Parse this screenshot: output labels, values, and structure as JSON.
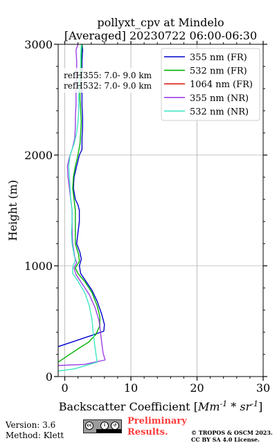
{
  "chart_data": {
    "type": "line",
    "title": "pollyxt_cpv at Mindelo",
    "subtitle": "[Averaged] 20230722 06:00-06:30",
    "xlabel": "Backscatter Coefficient [Mm^-1 * sr^-1]",
    "ylabel": "Height (m)",
    "xlim": [
      -1,
      30
    ],
    "ylim": [
      0,
      3000
    ],
    "xticks": [
      0,
      10,
      20,
      30
    ],
    "yticks": [
      0,
      1000,
      2000,
      3000
    ],
    "grid": true,
    "legend_position": "top-right",
    "reference_heights": [
      "refH355:  7.0- 9.0 km",
      "refH532:  7.0- 9.0 km"
    ],
    "series": [
      {
        "name": "355 nm (FR)",
        "color": "#0000cc",
        "points": [
          [
            -1.0,
            270
          ],
          [
            1.5,
            320
          ],
          [
            4.0,
            370
          ],
          [
            5.9,
            410
          ],
          [
            6.0,
            470
          ],
          [
            5.6,
            560
          ],
          [
            4.9,
            680
          ],
          [
            4.1,
            780
          ],
          [
            3.2,
            860
          ],
          [
            2.4,
            930
          ],
          [
            2.2,
            1000
          ],
          [
            2.5,
            1060
          ],
          [
            2.3,
            1120
          ],
          [
            1.8,
            1200
          ],
          [
            2.0,
            1300
          ],
          [
            2.2,
            1400
          ],
          [
            2.2,
            1500
          ],
          [
            2.0,
            1550
          ],
          [
            1.6,
            1600
          ],
          [
            1.3,
            1700
          ],
          [
            1.4,
            1800
          ],
          [
            1.8,
            1900
          ],
          [
            2.2,
            2000
          ],
          [
            2.6,
            2050
          ],
          [
            2.6,
            2150
          ],
          [
            2.7,
            2250
          ],
          [
            2.7,
            2350
          ],
          [
            2.6,
            2450
          ],
          [
            2.6,
            2550
          ],
          [
            2.5,
            2650
          ],
          [
            2.6,
            2750
          ],
          [
            2.6,
            2850
          ],
          [
            2.7,
            2950
          ],
          [
            2.6,
            3000
          ]
        ]
      },
      {
        "name": "532 nm (FR)",
        "color": "#00b200",
        "points": [
          [
            -1.0,
            130
          ],
          [
            0.5,
            190
          ],
          [
            2.0,
            250
          ],
          [
            3.6,
            310
          ],
          [
            4.7,
            380
          ],
          [
            5.3,
            460
          ],
          [
            5.3,
            540
          ],
          [
            4.9,
            640
          ],
          [
            4.1,
            760
          ],
          [
            3.0,
            860
          ],
          [
            2.0,
            930
          ],
          [
            1.6,
            980
          ],
          [
            2.2,
            1040
          ],
          [
            2.1,
            1100
          ],
          [
            1.6,
            1200
          ],
          [
            1.6,
            1300
          ],
          [
            1.6,
            1400
          ],
          [
            1.6,
            1500
          ],
          [
            1.4,
            1600
          ],
          [
            1.2,
            1700
          ],
          [
            1.3,
            1800
          ],
          [
            1.6,
            1900
          ],
          [
            2.0,
            2000
          ],
          [
            2.3,
            2100
          ],
          [
            2.4,
            2200
          ],
          [
            2.5,
            2300
          ],
          [
            2.4,
            2400
          ],
          [
            2.3,
            2500
          ],
          [
            2.3,
            2600
          ],
          [
            2.4,
            2700
          ],
          [
            2.5,
            2800
          ],
          [
            2.5,
            2900
          ],
          [
            2.6,
            3000
          ]
        ]
      },
      {
        "name": "1064 nm (FR)",
        "color": "#e0201b",
        "points": []
      },
      {
        "name": "355 nm (NR)",
        "color": "#9a40e6",
        "points": [
          [
            -1.0,
            100
          ],
          [
            3.0,
            110
          ],
          [
            6.1,
            150
          ],
          [
            5.8,
            210
          ],
          [
            5.6,
            300
          ],
          [
            5.4,
            400
          ],
          [
            5.2,
            500
          ],
          [
            4.6,
            620
          ],
          [
            3.7,
            740
          ],
          [
            2.6,
            840
          ],
          [
            1.7,
            920
          ],
          [
            1.4,
            980
          ],
          [
            1.8,
            1030
          ],
          [
            1.5,
            1080
          ],
          [
            1.2,
            1200
          ],
          [
            1.1,
            1300
          ],
          [
            1.1,
            1400
          ],
          [
            1.1,
            1500
          ],
          [
            0.9,
            1600
          ],
          [
            0.7,
            1700
          ],
          [
            0.5,
            1800
          ],
          [
            0.4,
            1900
          ],
          [
            0.7,
            1980
          ],
          [
            1.1,
            2050
          ],
          [
            1.5,
            2150
          ],
          [
            1.6,
            2250
          ],
          [
            1.6,
            2350
          ],
          [
            1.7,
            2450
          ],
          [
            1.7,
            2550
          ],
          [
            1.7,
            2650
          ],
          [
            1.8,
            2750
          ],
          [
            1.8,
            2850
          ],
          [
            1.7,
            2950
          ],
          [
            2.0,
            3000
          ]
        ]
      },
      {
        "name": "532 nm (NR)",
        "color": "#40e6c4",
        "points": [
          [
            -1.0,
            50
          ],
          [
            1.5,
            70
          ],
          [
            4.9,
            130
          ],
          [
            4.6,
            250
          ],
          [
            4.3,
            400
          ],
          [
            4.1,
            520
          ],
          [
            3.7,
            640
          ],
          [
            3.0,
            760
          ],
          [
            2.0,
            860
          ],
          [
            1.2,
            930
          ],
          [
            1.2,
            990
          ],
          [
            1.6,
            1050
          ],
          [
            1.4,
            1100
          ],
          [
            1.1,
            1200
          ],
          [
            1.0,
            1300
          ],
          [
            1.1,
            1400
          ],
          [
            1.1,
            1500
          ],
          [
            0.9,
            1600
          ],
          [
            0.8,
            1700
          ],
          [
            0.7,
            1800
          ],
          [
            0.6,
            1900
          ],
          [
            0.8,
            2000
          ],
          [
            1.4,
            2100
          ],
          [
            1.8,
            2200
          ],
          [
            2.0,
            2300
          ],
          [
            2.1,
            2400
          ],
          [
            2.1,
            2500
          ],
          [
            2.1,
            2600
          ],
          [
            2.2,
            2700
          ],
          [
            2.4,
            2800
          ],
          [
            2.4,
            2900
          ],
          [
            2.5,
            3000
          ]
        ]
      }
    ]
  },
  "footer": {
    "version": "Version: 3.6",
    "method": "Method: Klett",
    "preliminary_line1": "Preliminary",
    "preliminary_line2": "Results.",
    "copyright_line1": "© TROPOS & OSCM 2023.",
    "copyright_line2": "CC BY SA 4.0 License."
  },
  "license_badge": {
    "labels": [
      "cc",
      "BY",
      "SA"
    ],
    "icons": [
      "creative-commons-icon",
      "by-attribution-icon",
      "share-alike-icon"
    ]
  }
}
